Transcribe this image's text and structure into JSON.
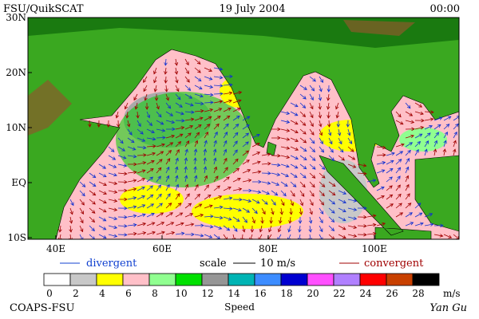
{
  "header": {
    "title": "FSU/QuikSCAT",
    "date": "19 July 2004",
    "time": "00:00"
  },
  "map": {
    "lat_labels": [
      "30N",
      "20N",
      "10N",
      "EQ",
      "10S"
    ],
    "lon_labels": [
      "40E",
      "60E",
      "80E",
      "100E"
    ]
  },
  "legend": {
    "divergent": "divergent",
    "scale": "scale",
    "scale_value": "10 m/s",
    "convergent": "convergent"
  },
  "colorbar": {
    "labels": [
      0,
      2,
      4,
      6,
      8,
      10,
      12,
      14,
      16,
      18,
      20,
      22,
      24,
      26,
      28
    ],
    "unit": "m/s",
    "title": "Speed"
  },
  "footer": {
    "credit": "COAPS-FSU",
    "author": "Yan Gu"
  }
}
